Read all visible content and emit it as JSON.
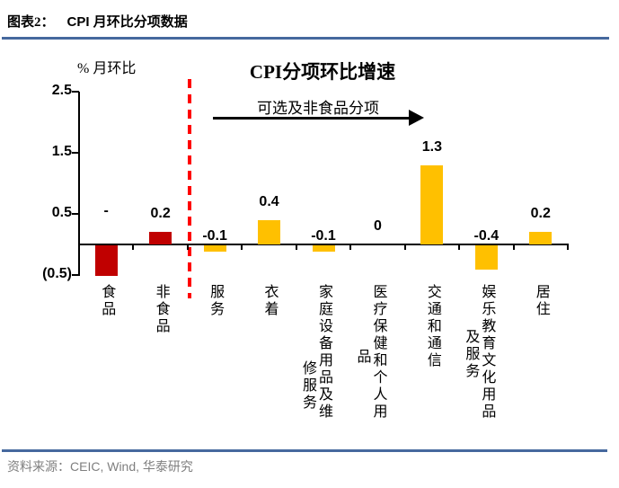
{
  "header": {
    "label": "图表2：",
    "title": "CPI 月环比分项数据"
  },
  "footer": {
    "source_prefix": "资料来源：",
    "source": "CEIC, Wind,  华泰研究"
  },
  "chart_data": {
    "type": "bar",
    "title": "CPI分项环比增速",
    "ylabel": "% 月环比",
    "annotation": "可选及非食品分项",
    "ylim": [
      -0.5,
      2.5
    ],
    "yticks": [
      2.5,
      1.5,
      0.5,
      -0.5
    ],
    "ytick_labels": [
      "2.5",
      "1.5",
      "0.5",
      "(0.5)"
    ],
    "grid": false,
    "legend": "none",
    "categories": [
      "食品",
      "非食品",
      "服务",
      "衣着",
      "家庭设备用品及维修服务",
      "医疗保健和个人用品",
      "交通和通信",
      "娱乐教育文化用品及服务",
      "居住"
    ],
    "values": [
      -0.5,
      0.2,
      -0.1,
      0.4,
      -0.1,
      0,
      1.3,
      -0.4,
      0.2
    ],
    "value_labels": [
      "-",
      "0.2",
      "-0.1",
      "0.4",
      "-0.1",
      "0",
      "1.3",
      "-0.4",
      "0.2"
    ],
    "bar_colors": [
      "#C00000",
      "#C00000",
      "#FFC000",
      "#FFC000",
      "#FFC000",
      "#FFC000",
      "#FFC000",
      "#FFC000",
      "#FFC000"
    ],
    "separator_after_category": "非食品"
  },
  "colors": {
    "red_bar": "#C00000",
    "gold_bar": "#FFC000",
    "separator_line": "#FF0000",
    "rule_line": "#46699E",
    "source_text": "#7F7F7F"
  }
}
